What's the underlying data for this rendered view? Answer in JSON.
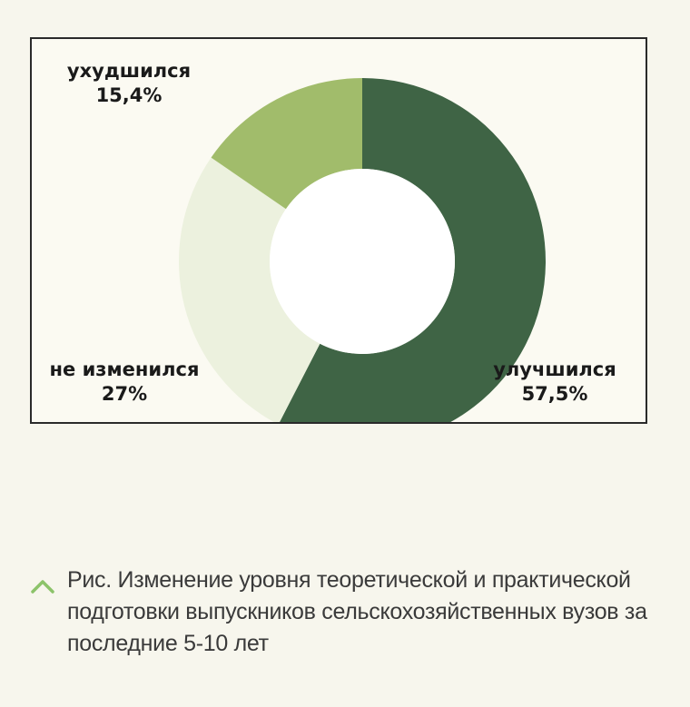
{
  "chart_data": {
    "type": "pie",
    "donut": true,
    "start": "top",
    "direction": "clockwise",
    "slices": [
      {
        "label": "улучшился",
        "value_label": "57,5%",
        "value": 57.5,
        "color": "#3f6445"
      },
      {
        "label": "не изменился",
        "value_label": "27%",
        "value": 27,
        "color": "#ecf1de"
      },
      {
        "label": "ухудшился",
        "value_label": "15,4%",
        "value": 15.4,
        "color": "#a1bc6b"
      }
    ]
  },
  "caption": {
    "text": "Рис. Изменение уровня теоретической и практической подготовки выпускников сельскохозяйственных вузов за последние 5-10 лет",
    "icon": "chevron-up-icon",
    "icon_color": "#8cc36a"
  }
}
